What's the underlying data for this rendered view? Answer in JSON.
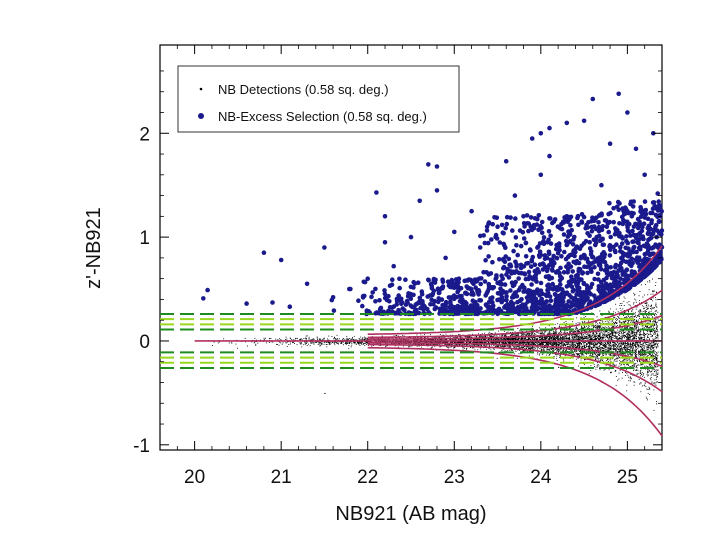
{
  "chart_data": {
    "type": "scatter",
    "xlabel": "NB921 (AB mag)",
    "ylabel": "z'-NB921",
    "xlim": [
      19.6,
      25.4
    ],
    "ylim": [
      -1.05,
      2.85
    ],
    "x_ticks": [
      20,
      21,
      22,
      23,
      24,
      25
    ],
    "y_ticks": [
      -1,
      0,
      1,
      2
    ],
    "grid": false,
    "legend_position": "top-left",
    "colors": {
      "detections": "#000000",
      "selection": "#1a1a8c",
      "sigma_curves": "#b03060",
      "threshold_dark": "#1e8c1e",
      "threshold_light": "#9ad81e"
    },
    "series": [
      {
        "name": "NB Detections (0.58 sq. deg.)",
        "marker": "small-dot",
        "note_points": "dense cloud centred at y=0, widening with magnitude",
        "points": [
          [
            22.0,
            0.02
          ],
          [
            22.5,
            -0.01
          ],
          [
            23.0,
            0.03
          ],
          [
            23.5,
            -0.04
          ],
          [
            24.0,
            0.05
          ],
          [
            24.5,
            -0.06
          ],
          [
            25.0,
            0.08
          ],
          [
            25.3,
            -0.1
          ],
          [
            24.2,
            -0.25
          ],
          [
            24.8,
            -0.3
          ],
          [
            25.1,
            0.2
          ],
          [
            23.8,
            -0.15
          ],
          [
            24.6,
            0.15
          ],
          [
            25.2,
            -0.4
          ],
          [
            21.5,
            -0.5
          ]
        ]
      },
      {
        "name": "NB-Excess Selection (0.58 sq. deg.)",
        "marker": "filled-circle",
        "points": [
          [
            20.1,
            0.41
          ],
          [
            20.15,
            0.49
          ],
          [
            20.6,
            0.36
          ],
          [
            20.8,
            0.85
          ],
          [
            20.9,
            0.37
          ],
          [
            21.0,
            0.78
          ],
          [
            21.1,
            0.33
          ],
          [
            21.3,
            0.55
          ],
          [
            21.5,
            0.9
          ],
          [
            21.6,
            0.42
          ],
          [
            21.8,
            0.5
          ],
          [
            22.0,
            0.6
          ],
          [
            22.1,
            1.43
          ],
          [
            22.2,
            1.2
          ],
          [
            22.2,
            0.95
          ],
          [
            22.3,
            0.72
          ],
          [
            22.5,
            1.0
          ],
          [
            22.6,
            1.35
          ],
          [
            22.7,
            1.7
          ],
          [
            22.8,
            1.68
          ],
          [
            22.8,
            1.45
          ],
          [
            22.9,
            0.8
          ],
          [
            23.0,
            1.05
          ],
          [
            23.2,
            1.25
          ],
          [
            23.3,
            0.9
          ],
          [
            23.5,
            1.1
          ],
          [
            23.6,
            1.73
          ],
          [
            23.7,
            1.4
          ],
          [
            23.8,
            1.2
          ],
          [
            23.9,
            1.95
          ],
          [
            24.0,
            1.6
          ],
          [
            24.0,
            2.0
          ],
          [
            24.1,
            2.05
          ],
          [
            24.1,
            1.78
          ],
          [
            24.3,
            1.2
          ],
          [
            24.3,
            2.1
          ],
          [
            24.5,
            2.12
          ],
          [
            24.6,
            2.33
          ],
          [
            24.7,
            1.5
          ],
          [
            24.8,
            1.9
          ],
          [
            24.9,
            2.38
          ],
          [
            25.0,
            2.2
          ],
          [
            25.1,
            1.85
          ],
          [
            25.2,
            1.6
          ],
          [
            25.3,
            2.0
          ],
          [
            25.35,
            1.42
          ],
          [
            25.38,
            1.2
          ],
          [
            25.3,
            0.9
          ]
        ]
      }
    ]
  }
}
